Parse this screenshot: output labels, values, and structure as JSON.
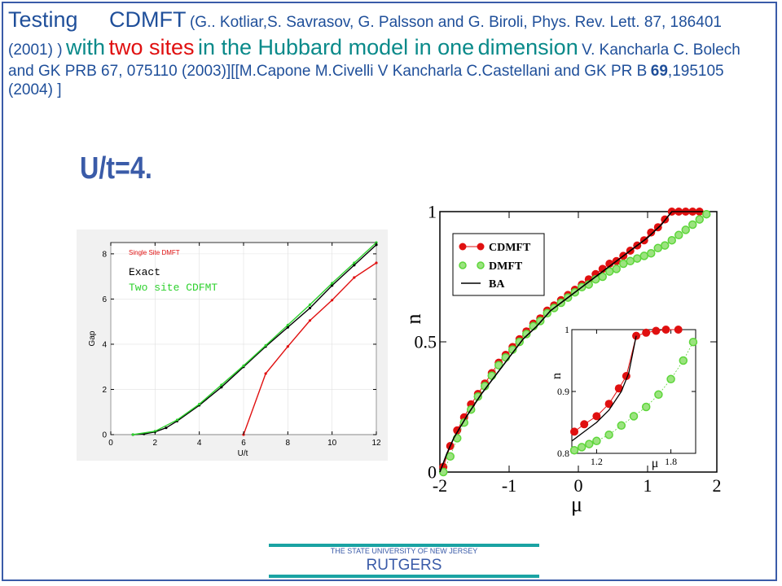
{
  "header": {
    "seg1": "Testing",
    "seg2": "CDMFT",
    "seg3": "(G.. Kotliar,S. Savrasov, G. Palsson and G. Biroli, Phys. Rev. Lett. 87, 186401 (2001) )",
    "seg4": "with",
    "seg5": "two sites",
    "seg6": "in  the Hubbard model in one",
    "seg7": "dimension",
    "seg8": "V. Kancharla C. Bolech and GK  PRB 67, 075110 (2003)][[M.Capone M.Civelli  V Kancharla C.Castellani and GK  PR B",
    "seg9": "69",
    "seg10": ",195105 (2004) ]"
  },
  "subtitle": "U/t=4.",
  "colors": {
    "accent": "#3a5ba8",
    "teal": "#0a8a8a",
    "red": "#e01010",
    "green": "#5dd63a",
    "bright_green": "#2ed12e"
  },
  "chart_data": [
    {
      "type": "line",
      "title": "Single Site DMFT",
      "xlabel": "U/t",
      "ylabel": "Gap",
      "xlim": [
        0,
        12
      ],
      "ylim": [
        0,
        8.5
      ],
      "xticks": [
        "0",
        "2",
        "4",
        "6",
        "8",
        "10",
        "12"
      ],
      "yticks": [
        "0",
        "2",
        "4",
        "6",
        "8"
      ],
      "legend": [
        "Exact",
        "Two site CDFMT"
      ],
      "series": [
        {
          "name": "Exact",
          "color": "#000000",
          "x": [
            1.0,
            1.5,
            2.0,
            2.5,
            3.0,
            4.0,
            5.0,
            6.0,
            7.0,
            8.0,
            9.0,
            10.0,
            11.0,
            12.0
          ],
          "y": [
            0.0,
            0.03,
            0.12,
            0.3,
            0.6,
            1.3,
            2.1,
            3.0,
            3.9,
            4.75,
            5.6,
            6.6,
            7.5,
            8.4
          ]
        },
        {
          "name": "Two site CDFMT",
          "color": "#2ed12e",
          "x": [
            1.0,
            2.0,
            3.0,
            4.0,
            5.0,
            6.0,
            7.0,
            8.0,
            9.0,
            10.0,
            11.0,
            12.0
          ],
          "y": [
            0.0,
            0.15,
            0.65,
            1.35,
            2.2,
            3.05,
            3.95,
            4.85,
            5.75,
            6.7,
            7.6,
            8.5
          ]
        },
        {
          "name": "Single Site DMFT",
          "color": "#e01010",
          "x": [
            6.0,
            7.0,
            8.0,
            9.0,
            10.0,
            11.0,
            12.0
          ],
          "y": [
            0.0,
            2.7,
            3.9,
            5.05,
            5.95,
            6.95,
            7.6
          ]
        }
      ]
    },
    {
      "type": "line",
      "xlabel": "μ",
      "ylabel": "n",
      "xlim": [
        -2,
        2
      ],
      "ylim": [
        0,
        1
      ],
      "xticks": [
        "-2",
        "-1",
        "0",
        "1",
        "2"
      ],
      "yticks": [
        "0",
        "0.5",
        "1"
      ],
      "legend": [
        "CDMFT",
        "DMFT",
        "BA"
      ],
      "series": [
        {
          "name": "CDMFT",
          "color": "#e01010",
          "x": [
            -1.95,
            -1.85,
            -1.75,
            -1.65,
            -1.55,
            -1.45,
            -1.35,
            -1.25,
            -1.15,
            -1.05,
            -0.95,
            -0.85,
            -0.75,
            -0.65,
            -0.55,
            -0.45,
            -0.35,
            -0.25,
            -0.15,
            -0.05,
            0.05,
            0.15,
            0.25,
            0.35,
            0.45,
            0.55,
            0.65,
            0.75,
            0.85,
            0.95,
            1.05,
            1.15,
            1.25,
            1.35,
            1.45,
            1.55,
            1.65,
            1.75
          ],
          "y": [
            0.02,
            0.1,
            0.16,
            0.21,
            0.26,
            0.3,
            0.34,
            0.38,
            0.42,
            0.45,
            0.48,
            0.51,
            0.54,
            0.57,
            0.59,
            0.62,
            0.64,
            0.66,
            0.68,
            0.7,
            0.72,
            0.74,
            0.76,
            0.78,
            0.8,
            0.81,
            0.83,
            0.85,
            0.87,
            0.89,
            0.92,
            0.94,
            0.97,
            1.0,
            1.0,
            1.0,
            1.0,
            1.0
          ]
        },
        {
          "name": "DMFT",
          "color": "#5dd63a",
          "x": [
            -1.95,
            -1.85,
            -1.75,
            -1.65,
            -1.55,
            -1.45,
            -1.35,
            -1.25,
            -1.15,
            -1.05,
            -0.95,
            -0.85,
            -0.75,
            -0.65,
            -0.55,
            -0.45,
            -0.35,
            -0.25,
            -0.15,
            -0.05,
            0.05,
            0.15,
            0.25,
            0.35,
            0.45,
            0.55,
            0.65,
            0.75,
            0.85,
            0.95,
            1.05,
            1.15,
            1.25,
            1.35,
            1.45,
            1.55,
            1.65,
            1.75,
            1.85
          ],
          "y": [
            0.0,
            0.06,
            0.13,
            0.19,
            0.24,
            0.29,
            0.33,
            0.37,
            0.41,
            0.44,
            0.47,
            0.5,
            0.53,
            0.56,
            0.58,
            0.61,
            0.63,
            0.65,
            0.67,
            0.69,
            0.71,
            0.72,
            0.74,
            0.75,
            0.77,
            0.78,
            0.8,
            0.81,
            0.82,
            0.83,
            0.84,
            0.86,
            0.87,
            0.89,
            0.91,
            0.93,
            0.95,
            0.97,
            0.99
          ]
        },
        {
          "name": "BA",
          "color": "#000000",
          "x": [
            -2.0,
            -1.9,
            -1.8,
            -1.6,
            -1.4,
            -1.2,
            -1.0,
            -0.8,
            -0.6,
            -0.4,
            -0.2,
            0.0,
            0.2,
            0.4,
            0.6,
            0.8,
            1.0,
            1.2,
            1.35,
            1.4,
            1.6,
            1.8
          ],
          "y": [
            0.0,
            0.07,
            0.13,
            0.22,
            0.3,
            0.37,
            0.44,
            0.51,
            0.56,
            0.62,
            0.66,
            0.7,
            0.74,
            0.78,
            0.82,
            0.86,
            0.9,
            0.95,
            1.0,
            1.0,
            1.0,
            1.0
          ]
        }
      ]
    },
    {
      "type": "line",
      "xlabel": "μ",
      "ylabel": "n",
      "xlim": [
        1.0,
        2.0
      ],
      "ylim": [
        0.8,
        1.0
      ],
      "xticks": [
        "1.2",
        "1.8"
      ],
      "yticks": [
        "0.8",
        "0.9",
        "1"
      ],
      "series": [
        {
          "name": "CDMFT",
          "color": "#e01010",
          "x": [
            1.02,
            1.1,
            1.2,
            1.3,
            1.38,
            1.44,
            1.52,
            1.6,
            1.68,
            1.76,
            1.86
          ],
          "y": [
            0.835,
            0.847,
            0.86,
            0.88,
            0.905,
            0.925,
            0.99,
            0.995,
            0.998,
            1.0,
            1.0
          ]
        },
        {
          "name": "DMFT",
          "color": "#5dd63a",
          "x": [
            1.02,
            1.08,
            1.14,
            1.2,
            1.3,
            1.4,
            1.5,
            1.6,
            1.7,
            1.8,
            1.9,
            1.98
          ],
          "y": [
            0.805,
            0.81,
            0.815,
            0.82,
            0.83,
            0.845,
            0.86,
            0.875,
            0.895,
            0.92,
            0.95,
            0.98
          ]
        },
        {
          "name": "BA",
          "color": "#000000",
          "x": [
            1.0,
            1.1,
            1.2,
            1.3,
            1.4,
            1.46,
            1.5,
            1.52
          ],
          "y": [
            0.82,
            0.835,
            0.85,
            0.87,
            0.9,
            0.93,
            0.97,
            0.99
          ]
        }
      ]
    }
  ],
  "footer": {
    "top": "THE STATE UNIVERSITY OF NEW JERSEY",
    "main": "RUTGERS"
  }
}
